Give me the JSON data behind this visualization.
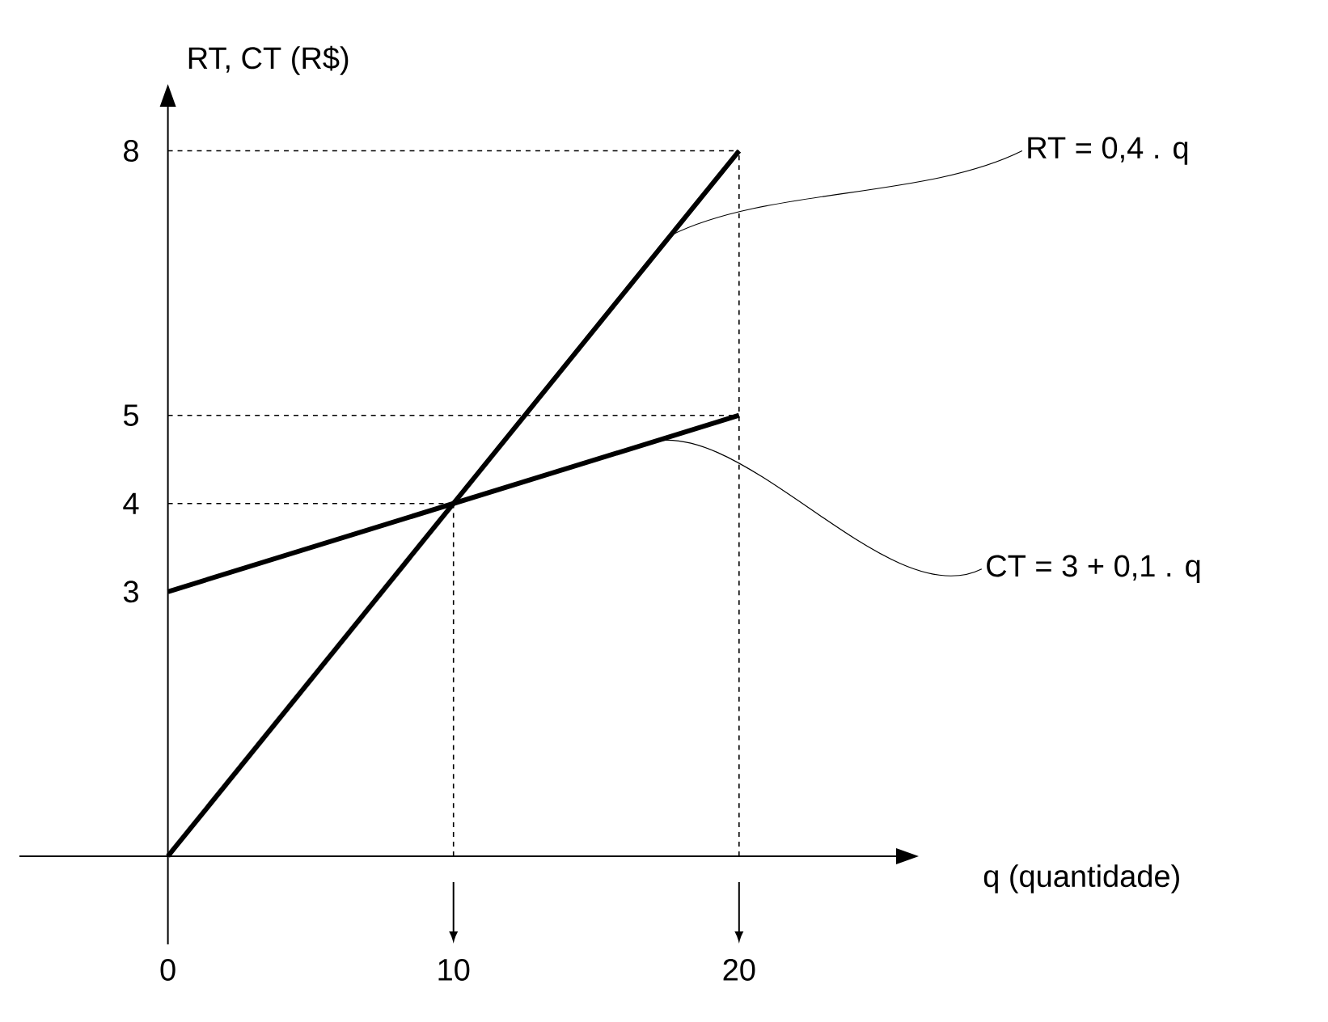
{
  "chart_data": {
    "type": "line",
    "xlabel": "q (quantidade)",
    "ylabel": "RT, CT (R$)",
    "x": [
      0,
      10,
      20
    ],
    "series": [
      {
        "name": "RT = 0,4 . q",
        "color": "#000000",
        "values": [
          0,
          4,
          8
        ]
      },
      {
        "name": "CT = 3 + 0,1 . q",
        "color": "#000000",
        "values": [
          3,
          4,
          5
        ]
      }
    ],
    "xlim": [
      -5.2,
      25.5
    ],
    "ylim": [
      -1,
      8.5
    ],
    "xticks": [
      0,
      10,
      20
    ],
    "yticks": [
      3,
      4,
      5,
      8
    ],
    "ref_lines": [
      {
        "axis": "y",
        "value": 8,
        "line_style": "dashed"
      },
      {
        "axis": "y",
        "value": 5,
        "line_style": "dashed"
      },
      {
        "axis": "y",
        "value": 4,
        "line_style": "dashed"
      },
      {
        "axis": "x",
        "value": 10,
        "line_style": "dashed"
      },
      {
        "axis": "x",
        "value": 20,
        "line_style": "dashed"
      }
    ],
    "marker": "none"
  }
}
